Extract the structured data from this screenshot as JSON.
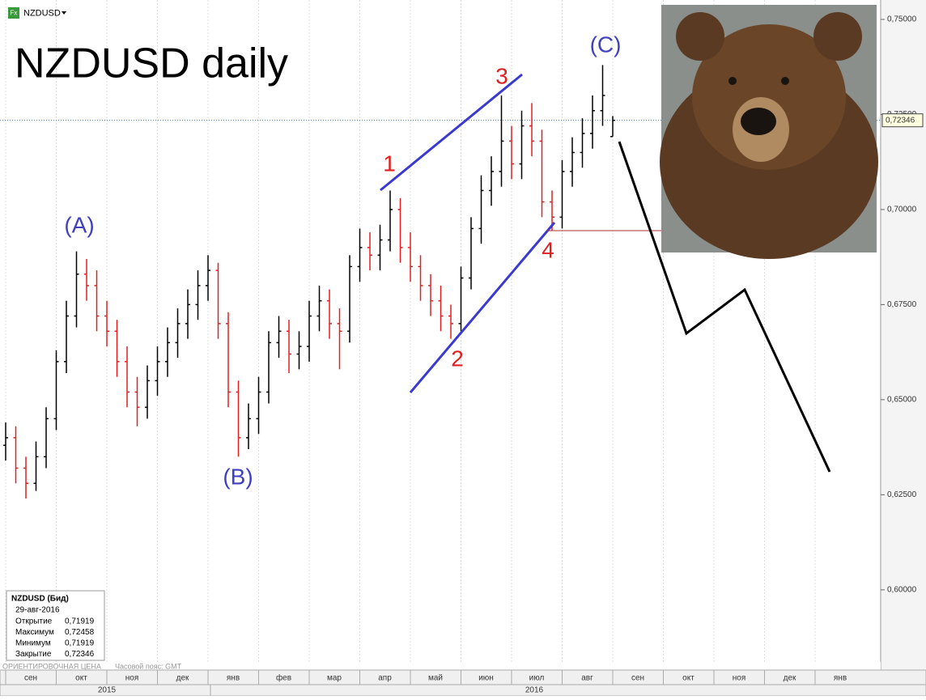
{
  "header": {
    "symbol": "NZDUSD",
    "icon": "Fx"
  },
  "chart_data": {
    "type": "ohlc",
    "title": "NZDUSD daily",
    "x": [
      0,
      0.2,
      0.4,
      0.6,
      0.8,
      1,
      1.2,
      1.4,
      1.6,
      1.8,
      2,
      2.2,
      2.4,
      2.6,
      2.8,
      3,
      3.2,
      3.4,
      3.6,
      3.8,
      4,
      4.2,
      4.4,
      4.6,
      4.8,
      5,
      5.2,
      5.4,
      5.6,
      5.8,
      6,
      6.2,
      6.4,
      6.6,
      6.8,
      7,
      7.2,
      7.4,
      7.6,
      7.8,
      8,
      8.2,
      8.4,
      8.6,
      8.8,
      9,
      9.2,
      9.4,
      9.6,
      9.8,
      10,
      10.2,
      10.4,
      10.6,
      10.8,
      11,
      11.2,
      11.4,
      11.6,
      11.8,
      12
    ],
    "open": [
      0.638,
      0.64,
      0.632,
      0.628,
      0.635,
      0.645,
      0.66,
      0.672,
      0.683,
      0.68,
      0.672,
      0.668,
      0.66,
      0.652,
      0.648,
      0.655,
      0.66,
      0.665,
      0.67,
      0.675,
      0.68,
      0.684,
      0.67,
      0.652,
      0.64,
      0.645,
      0.652,
      0.665,
      0.668,
      0.662,
      0.664,
      0.672,
      0.676,
      0.67,
      0.668,
      0.685,
      0.69,
      0.688,
      0.692,
      0.7,
      0.69,
      0.685,
      0.68,
      0.676,
      0.672,
      0.67,
      0.682,
      0.695,
      0.705,
      0.71,
      0.718,
      0.712,
      0.722,
      0.718,
      0.702,
      0.698,
      0.71,
      0.715,
      0.72,
      0.726,
      0.71919
    ],
    "high": [
      0.644,
      0.643,
      0.635,
      0.639,
      0.648,
      0.663,
      0.676,
      0.689,
      0.687,
      0.684,
      0.676,
      0.671,
      0.664,
      0.656,
      0.659,
      0.664,
      0.669,
      0.674,
      0.679,
      0.684,
      0.688,
      0.686,
      0.673,
      0.655,
      0.649,
      0.656,
      0.668,
      0.672,
      0.671,
      0.668,
      0.676,
      0.68,
      0.679,
      0.674,
      0.688,
      0.695,
      0.694,
      0.696,
      0.705,
      0.703,
      0.694,
      0.688,
      0.683,
      0.68,
      0.675,
      0.685,
      0.698,
      0.709,
      0.714,
      0.73,
      0.722,
      0.726,
      0.728,
      0.721,
      0.705,
      0.713,
      0.719,
      0.724,
      0.73,
      0.738,
      0.72458
    ],
    "low": [
      0.634,
      0.628,
      0.624,
      0.626,
      0.632,
      0.642,
      0.657,
      0.669,
      0.676,
      0.668,
      0.664,
      0.656,
      0.648,
      0.643,
      0.645,
      0.651,
      0.656,
      0.661,
      0.666,
      0.671,
      0.676,
      0.666,
      0.648,
      0.635,
      0.637,
      0.641,
      0.649,
      0.661,
      0.657,
      0.658,
      0.66,
      0.668,
      0.666,
      0.658,
      0.665,
      0.681,
      0.684,
      0.684,
      0.689,
      0.686,
      0.681,
      0.676,
      0.672,
      0.668,
      0.666,
      0.668,
      0.679,
      0.691,
      0.701,
      0.706,
      0.708,
      0.708,
      0.714,
      0.698,
      0.6945,
      0.695,
      0.706,
      0.711,
      0.716,
      0.722,
      0.71919
    ],
    "close": [
      0.64,
      0.632,
      0.628,
      0.635,
      0.645,
      0.66,
      0.672,
      0.683,
      0.68,
      0.672,
      0.668,
      0.66,
      0.652,
      0.648,
      0.655,
      0.66,
      0.665,
      0.67,
      0.675,
      0.68,
      0.684,
      0.67,
      0.652,
      0.64,
      0.645,
      0.652,
      0.665,
      0.668,
      0.662,
      0.664,
      0.672,
      0.676,
      0.67,
      0.668,
      0.685,
      0.69,
      0.688,
      0.692,
      0.7,
      0.69,
      0.685,
      0.68,
      0.676,
      0.672,
      0.67,
      0.682,
      0.695,
      0.705,
      0.71,
      0.718,
      0.712,
      0.722,
      0.718,
      0.702,
      0.698,
      0.71,
      0.715,
      0.72,
      0.726,
      0.73,
      0.72346
    ],
    "up_color": "#000000",
    "down_color": "#e02020",
    "xlim": [
      -0.112,
      17.296
    ],
    "xticks": [
      {
        "value": 0,
        "label": "сен"
      },
      {
        "value": 1,
        "label": "окт"
      },
      {
        "value": 2,
        "label": "ноя"
      },
      {
        "value": 3,
        "label": "дек"
      },
      {
        "value": 4,
        "label": "янв"
      },
      {
        "value": 5,
        "label": "фев"
      },
      {
        "value": 6,
        "label": "мар"
      },
      {
        "value": 7,
        "label": "апр"
      },
      {
        "value": 8,
        "label": "май"
      },
      {
        "value": 9,
        "label": "июн"
      },
      {
        "value": 10,
        "label": "июл"
      },
      {
        "value": 11,
        "label": "авг"
      },
      {
        "value": 12,
        "label": "сен"
      },
      {
        "value": 13,
        "label": "окт"
      },
      {
        "value": 14,
        "label": "ноя"
      },
      {
        "value": 15,
        "label": "дек"
      },
      {
        "value": 16,
        "label": "янв"
      }
    ],
    "years": [
      "2015",
      "2016"
    ],
    "ylim": [
      0.5789,
      0.7551
    ],
    "yticks": [
      {
        "value": 0.6,
        "label": "0,60000"
      },
      {
        "value": 0.625,
        "label": "0,62500"
      },
      {
        "value": 0.65,
        "label": "0,65000"
      },
      {
        "value": 0.675,
        "label": "0,67500"
      },
      {
        "value": 0.7,
        "label": "0,70000"
      },
      {
        "value": 0.725,
        "label": "0,72500"
      },
      {
        "value": 0.75,
        "label": "0,75000"
      }
    ],
    "last_price": {
      "value": 0.72346,
      "label": "0,72346"
    },
    "waves": [
      "(A)",
      "(B)",
      "(C)",
      "1",
      "2",
      "3",
      "4"
    ],
    "grid": true
  },
  "info": {
    "title": "NZDUSD (Бид)",
    "date": "29-авг-2016",
    "rows": [
      [
        "Открытие",
        "0,71919"
      ],
      [
        "Максимум",
        "0,72458"
      ],
      [
        "Минимум",
        "0,71919"
      ],
      [
        "Закрытие",
        "0,72346"
      ]
    ]
  },
  "footer": {
    "price_type": "ОРИЕНТИРОВОЧНАЯ ЦЕНА",
    "timezone": "Часовой пояс: GMT"
  }
}
